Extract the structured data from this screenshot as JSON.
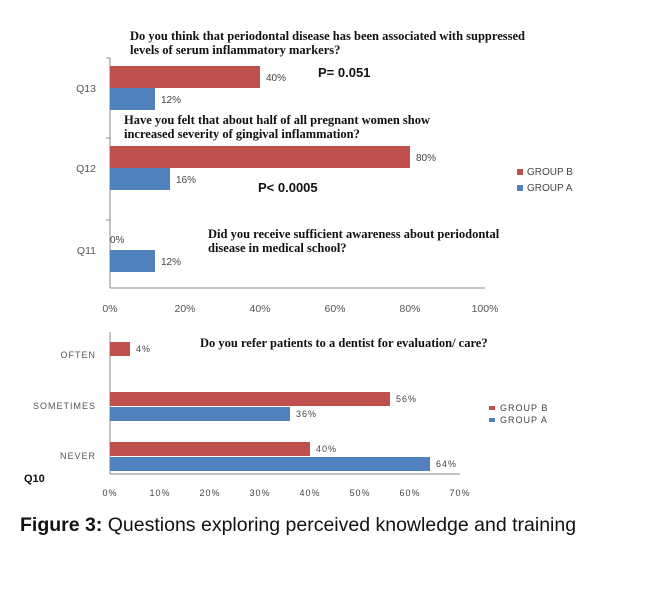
{
  "chart_data": [
    {
      "type": "bar",
      "orientation": "horizontal",
      "categories": [
        "Q13",
        "Q12",
        "Q11"
      ],
      "series": [
        {
          "name": "GROUP B",
          "color": "#c0504d",
          "values": [
            40,
            80,
            0
          ]
        },
        {
          "name": "GROUP A",
          "color": "#4f81bd",
          "values": [
            12,
            16,
            12
          ]
        }
      ],
      "data_labels": {
        "GROUP B": [
          "40%",
          "80%",
          "0%"
        ],
        "GROUP A": [
          "12%",
          "16%",
          "12%"
        ]
      },
      "xlim": [
        0,
        100
      ],
      "x_ticks": [
        "0%",
        "20%",
        "40%",
        "60%",
        "80%",
        "100%"
      ],
      "grid": false,
      "legend_position": "right",
      "annotations": {
        "q13_question": [
          "Do you think that periodontal disease has been associated with suppressed",
          "levels of serum inflammatory markers?"
        ],
        "q13_p": "P= 0.051",
        "q12_question": [
          "Have you felt that about half of all pregnant women show",
          "increased severity of gingival inflammation?"
        ],
        "q12_p": "P< 0.0005",
        "q11_question": [
          "Did you receive sufficient awareness about periodontal",
          "disease in medical school?"
        ]
      }
    },
    {
      "type": "bar",
      "orientation": "horizontal",
      "question_label": "Q10",
      "categories": [
        "OFTEN",
        "SOMETIMES",
        "NEVER"
      ],
      "series": [
        {
          "name": "GROUP B",
          "color": "#c0504d",
          "values": [
            4,
            56,
            40
          ]
        },
        {
          "name": "GROUP A",
          "color": "#4f81bd",
          "values": [
            0,
            36,
            64
          ]
        }
      ],
      "data_labels": {
        "GROUP B": [
          "4%",
          "56%",
          "40%"
        ],
        "GROUP A": [
          "",
          "36%",
          "64%"
        ]
      },
      "xlim": [
        0,
        70
      ],
      "x_ticks": [
        "0%",
        "10%",
        "20%",
        "30%",
        "40%",
        "50%",
        "60%",
        "70%"
      ],
      "grid": false,
      "legend_position": "right",
      "annotations": {
        "question": "Do you refer patients to a dentist for evaluation/ care?"
      }
    }
  ],
  "caption": {
    "lead": "Figure 3:",
    "text": " Questions exploring perceived knowledge and training"
  }
}
